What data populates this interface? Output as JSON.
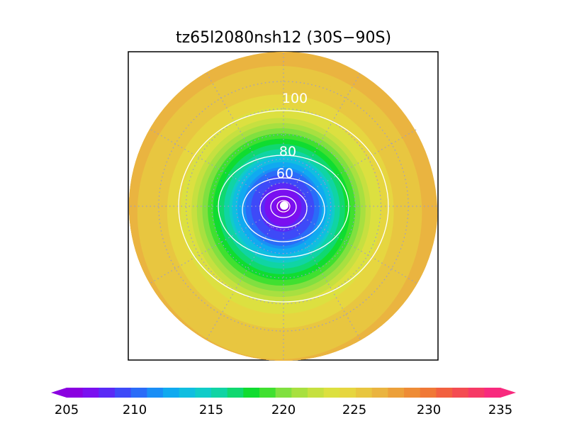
{
  "title": "tz65l2080nsh12 (30S−90S)",
  "colors": {
    "palette": [
      "#8a00e0",
      "#7a10f0",
      "#5a2af6",
      "#3e4af8",
      "#2a6cf8",
      "#1a8ef6",
      "#10aaf0",
      "#10bee0",
      "#10ccc8",
      "#10d4a4",
      "#10d870",
      "#10dc30",
      "#40e030",
      "#80e040",
      "#a8e040",
      "#c6e040",
      "#dce040",
      "#e6d640",
      "#e8c640",
      "#eab440",
      "#eca03a",
      "#ee8c36",
      "#f07836",
      "#f26040",
      "#f44c52",
      "#f63a66",
      "#f82a7e"
    ],
    "frame": "#000000",
    "contour": "#ffffff",
    "grid": "#9a9acc"
  },
  "chart_data": {
    "type": "heatmap",
    "projection": "south polar stereographic",
    "region": "30S−90S",
    "colorbar": {
      "min": 205,
      "max": 235,
      "step": 1.25,
      "ticks": [
        "205",
        "210",
        "215",
        "220",
        "225",
        "230",
        "235"
      ],
      "extend": "both"
    },
    "field": {
      "min_value": 205.5,
      "min_location": "south pole",
      "max_value": 231.5,
      "max_location": "outer edge, lower-left",
      "rings": [
        {
          "lat": -90,
          "value": 205.5
        },
        {
          "lat": -85,
          "value": 206.5
        },
        {
          "lat": -80,
          "value": 208.0
        },
        {
          "lat": -75,
          "value": 210.5
        },
        {
          "lat": -70,
          "value": 213.5
        },
        {
          "lat": -65,
          "value": 217.0
        },
        {
          "lat": -60,
          "value": 220.0
        },
        {
          "lat": -55,
          "value": 223.0
        },
        {
          "lat": -50,
          "value": 225.5
        },
        {
          "lat": -45,
          "value": 227.0
        },
        {
          "lat": -40,
          "value": 228.0
        },
        {
          "lat": -35,
          "value": 228.5
        },
        {
          "lat": -30,
          "value": 229.0
        }
      ],
      "asymmetry": "warmer toward lower-left, cooler toward upper-right"
    },
    "contours": {
      "labeled": [
        {
          "label": "100",
          "value": 100
        },
        {
          "label": "80",
          "value": 80
        },
        {
          "label": "60",
          "value": 60
        }
      ],
      "unlabeled": [
        40,
        20
      ]
    },
    "grid": {
      "latitudes": [
        -40,
        -50,
        -60,
        -70,
        -80
      ],
      "meridian_spacing_deg": 30,
      "style": "dotted"
    }
  }
}
